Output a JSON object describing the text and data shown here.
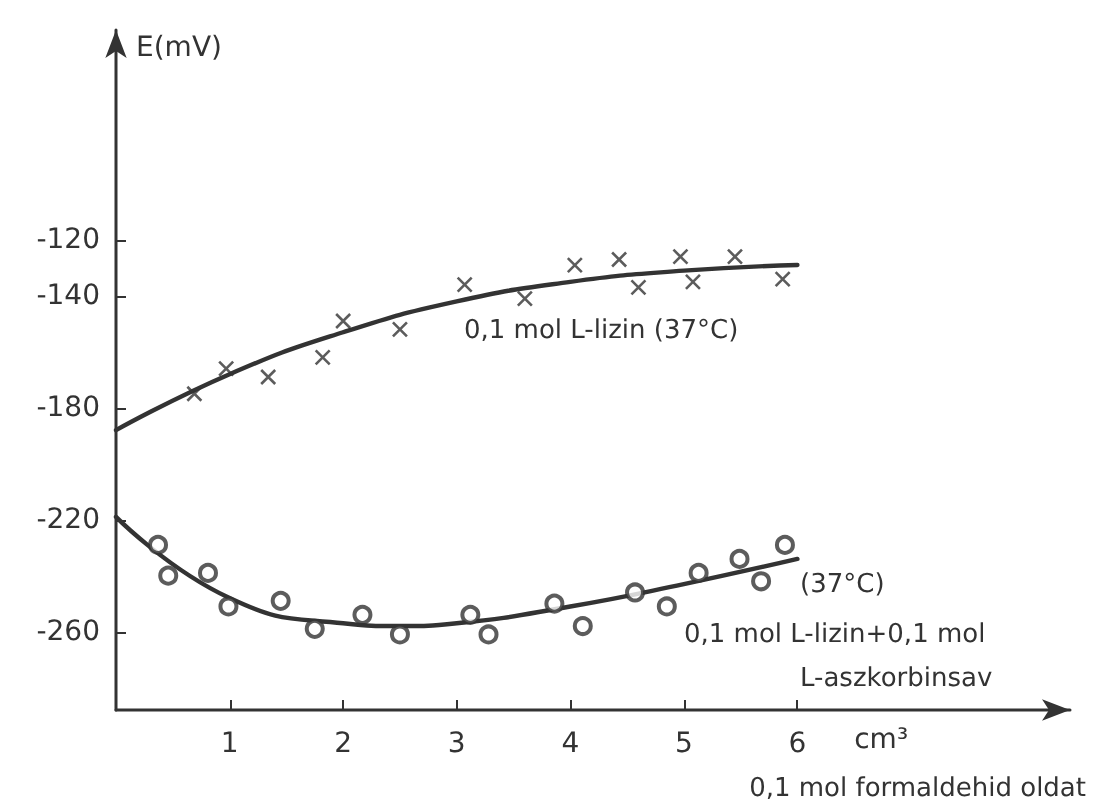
{
  "chart_data": {
    "type": "scatter",
    "xlabel": "cm³",
    "ylabel": "E(mV)",
    "xlim": [
      0,
      8.4
    ],
    "xticks": [
      1,
      2,
      3,
      4,
      5,
      6
    ],
    "ylim": [
      -288,
      -45
    ],
    "yticks": [
      -120,
      -140,
      -180,
      -220,
      -260
    ],
    "grid": false,
    "series": [
      {
        "marker": "cross",
        "color": "#333333",
        "x": [
          0.69,
          0.97,
          1.34,
          1.82,
          2.0,
          2.5,
          3.07,
          3.6,
          4.04,
          4.43,
          4.6,
          4.97,
          5.08,
          5.45,
          5.87
        ],
        "values": [
          -175,
          -166,
          -169,
          -162,
          -149,
          -152,
          -136,
          -141,
          -129,
          -127,
          -137,
          -126,
          -135,
          -126,
          -134
        ]
      },
      {
        "type": "line",
        "marker": "none",
        "color": "#333333",
        "x": [
          0,
          1,
          2,
          3,
          4,
          5,
          6
        ],
        "values": [
          -188,
          -168,
          -153,
          -142,
          -135,
          -131,
          -129
        ]
      },
      {
        "marker": "circle",
        "color": "#333333",
        "x": [
          0.37,
          0.46,
          0.81,
          0.99,
          1.45,
          1.75,
          2.17,
          2.5,
          3.12,
          3.28,
          3.86,
          4.11,
          4.57,
          4.85,
          5.13,
          5.49,
          5.68,
          5.89
        ],
        "values": [
          -229,
          -240,
          -239,
          -251,
          -249,
          -259,
          -254,
          -261,
          -254,
          -261,
          -250,
          -258,
          -246,
          -251,
          -239,
          -234,
          -242,
          -229
        ]
      },
      {
        "type": "line",
        "marker": "none",
        "color": "#333333",
        "x": [
          0,
          1,
          2,
          2.5,
          3,
          4,
          5,
          6
        ],
        "values": [
          -219,
          -248,
          -257,
          -258,
          -257,
          -251,
          -243,
          -234
        ]
      }
    ],
    "annotations": [
      "0,1 mol L-lizin (37°C)",
      "(37°C)",
      "0,1 mol L-lizin+0,1 mol",
      "L-aszkorbinsav",
      "0,1 mol formaldehid oldat"
    ]
  }
}
